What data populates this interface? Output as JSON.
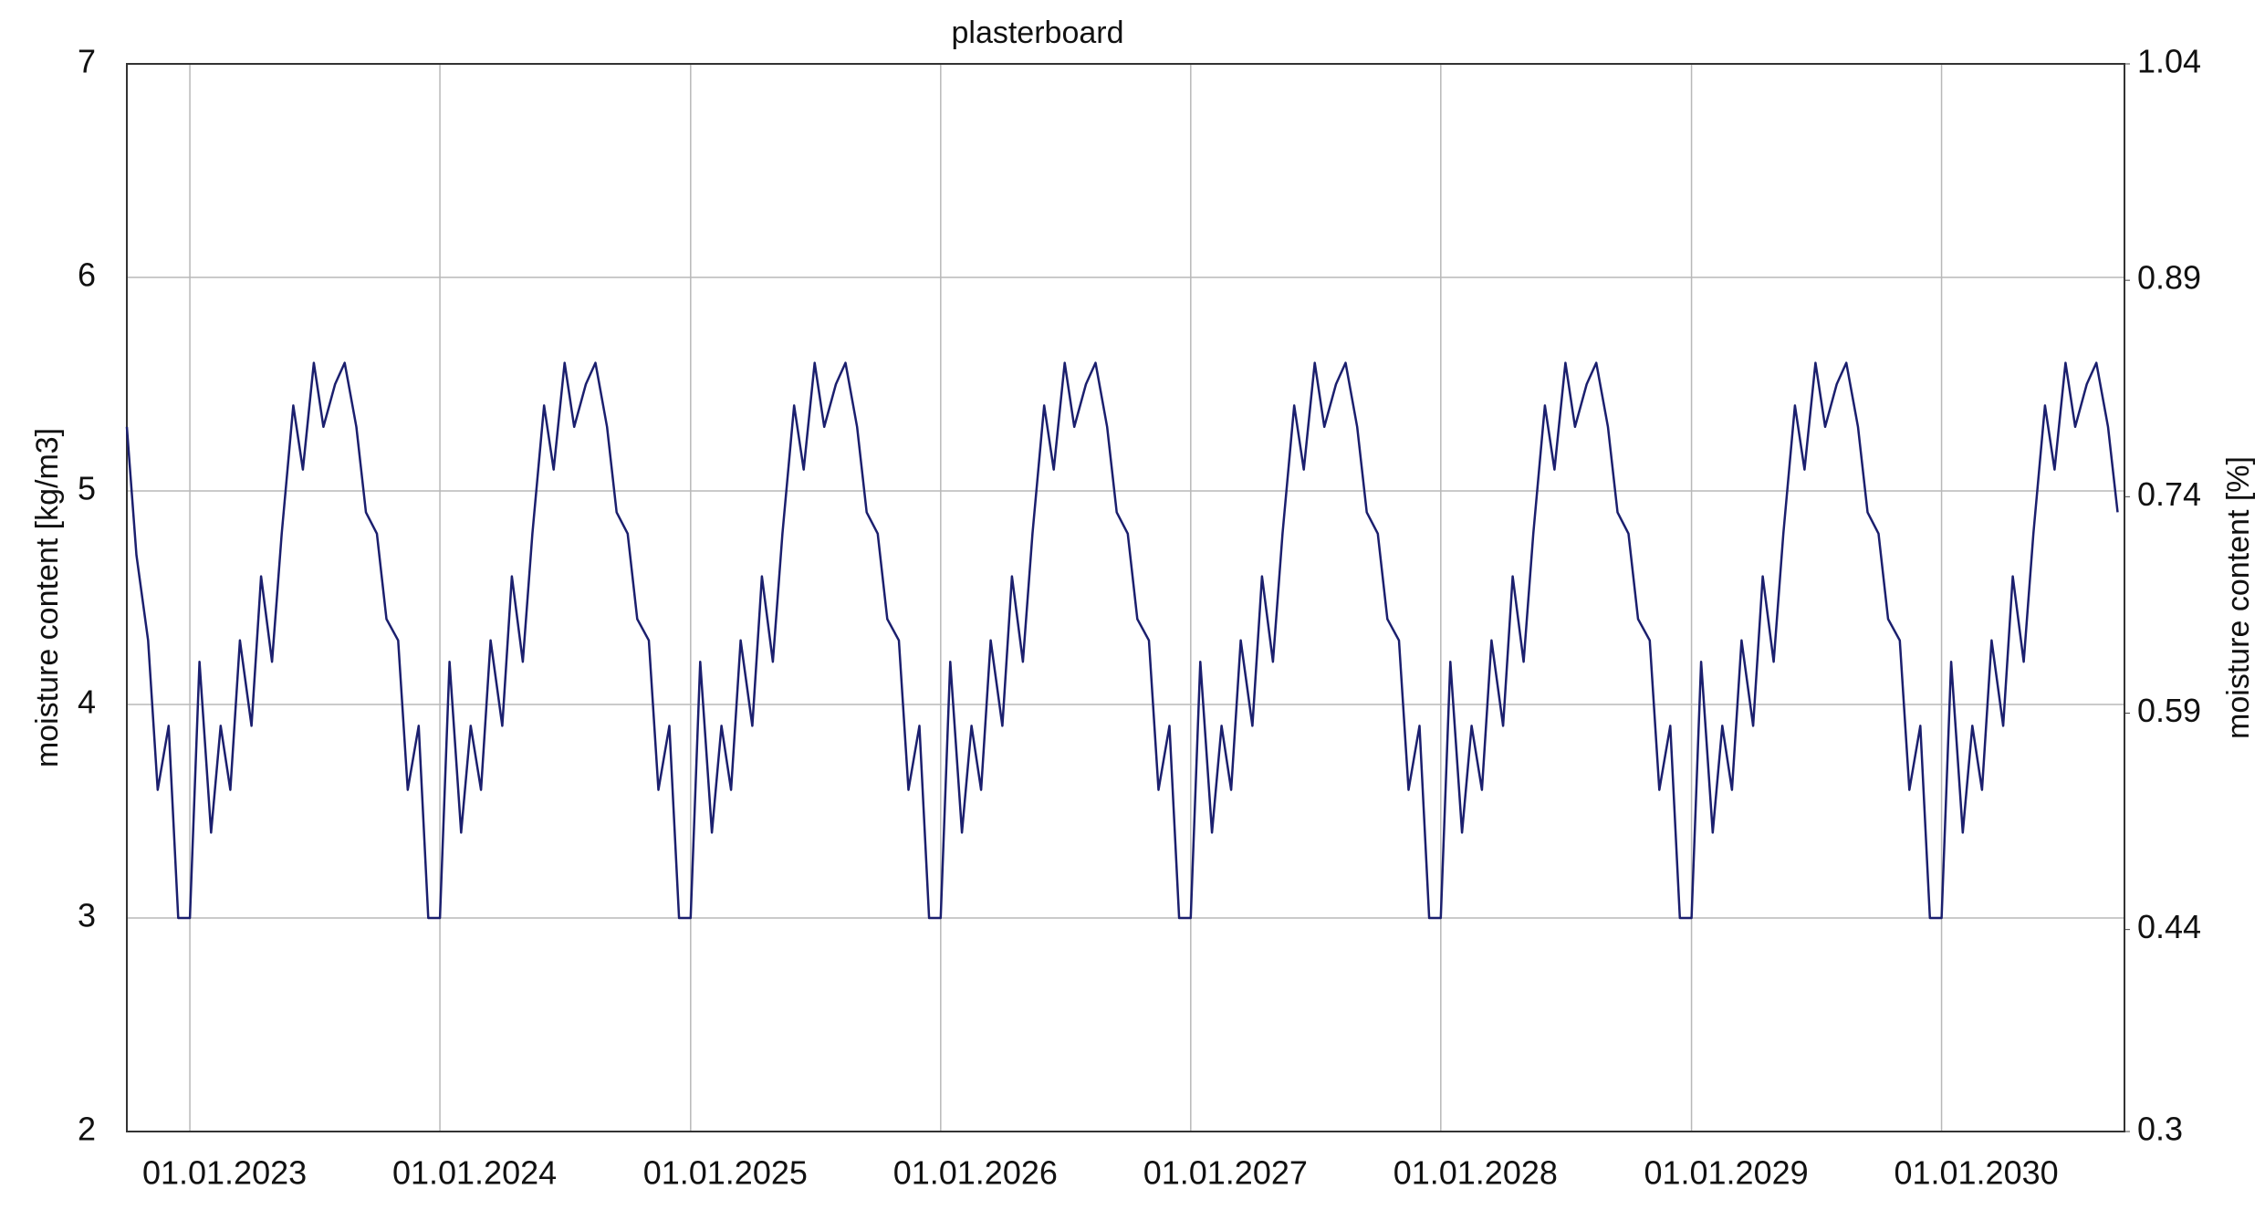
{
  "chart_data": {
    "type": "line",
    "title": "plasterboard",
    "y_label": "moisture content [kg/m3]",
    "y2_label": "moisture content [%]",
    "xlim": [
      "01.10.2022",
      "25.09.2030"
    ],
    "xticks": [
      "01.01.2023",
      "01.01.2024",
      "01.01.2025",
      "01.01.2026",
      "01.01.2027",
      "01.01.2028",
      "01.01.2029",
      "01.01.2030"
    ],
    "ylim": [
      2,
      7
    ],
    "yticks": [
      2,
      3,
      4,
      5,
      6,
      7
    ],
    "y2lim": [
      0.3,
      1.04
    ],
    "y2ticks": [
      0.3,
      0.44,
      0.59,
      0.74,
      0.89,
      1.04
    ],
    "grid": true,
    "x": [
      "01.10.2022",
      "15.10.2022",
      "01.11.2022",
      "15.11.2022",
      "01.12.2022",
      "15.12.2022",
      "01.01.2023",
      "15.01.2023",
      "01.02.2023",
      "15.02.2023",
      "01.03.2023",
      "15.03.2023",
      "01.04.2023",
      "15.04.2023",
      "01.05.2023",
      "15.05.2023",
      "01.06.2023",
      "15.06.2023",
      "01.07.2023",
      "15.07.2023",
      "01.08.2023",
      "15.08.2023",
      "01.09.2023",
      "15.09.2023",
      "01.10.2023",
      "15.10.2023",
      "01.11.2023",
      "15.11.2023",
      "01.12.2023",
      "15.12.2023",
      "01.01.2024",
      "15.01.2024",
      "01.02.2024",
      "15.02.2024",
      "01.03.2024",
      "15.03.2024",
      "01.04.2024",
      "15.04.2024",
      "01.05.2024",
      "15.05.2024",
      "01.06.2024",
      "15.06.2024",
      "01.07.2024",
      "15.07.2024",
      "01.08.2024",
      "15.08.2024",
      "01.09.2024",
      "15.09.2024",
      "01.10.2024",
      "15.10.2024",
      "01.11.2024",
      "15.11.2024",
      "01.12.2024",
      "15.12.2024",
      "01.01.2025",
      "15.01.2025",
      "01.02.2025",
      "15.02.2025",
      "01.03.2025",
      "15.03.2025",
      "01.04.2025",
      "15.04.2025",
      "01.05.2025",
      "15.05.2025",
      "01.06.2025",
      "15.06.2025",
      "01.07.2025",
      "15.07.2025",
      "01.08.2025",
      "15.08.2025",
      "01.09.2025",
      "15.09.2025",
      "01.10.2025",
      "15.10.2025",
      "01.11.2025",
      "15.11.2025",
      "01.12.2025",
      "15.12.2025",
      "01.01.2026",
      "15.01.2026",
      "01.02.2026",
      "15.02.2026",
      "01.03.2026",
      "15.03.2026",
      "01.04.2026",
      "15.04.2026",
      "01.05.2026",
      "15.05.2026",
      "01.06.2026",
      "15.06.2026",
      "01.07.2026",
      "15.07.2026",
      "01.08.2026",
      "15.08.2026",
      "01.09.2026",
      "15.09.2026",
      "01.10.2026",
      "15.10.2026",
      "01.11.2026",
      "15.11.2026",
      "01.12.2026",
      "15.12.2026",
      "01.01.2027",
      "15.01.2027",
      "01.02.2027",
      "15.02.2027",
      "01.03.2027",
      "15.03.2027",
      "01.04.2027",
      "15.04.2027",
      "01.05.2027",
      "15.05.2027",
      "01.06.2027",
      "15.06.2027",
      "01.07.2027",
      "15.07.2027",
      "01.08.2027",
      "15.08.2027",
      "01.09.2027",
      "15.09.2027",
      "01.10.2027",
      "15.10.2027",
      "01.11.2027",
      "15.11.2027",
      "01.12.2027",
      "15.12.2027",
      "01.01.2028",
      "15.01.2028",
      "01.02.2028",
      "15.02.2028",
      "01.03.2028",
      "15.03.2028",
      "01.04.2028",
      "15.04.2028",
      "01.05.2028",
      "15.05.2028",
      "01.06.2028",
      "15.06.2028",
      "01.07.2028",
      "15.07.2028",
      "01.08.2028",
      "15.08.2028",
      "01.09.2028",
      "15.09.2028",
      "01.10.2028",
      "15.10.2028",
      "01.11.2028",
      "15.11.2028",
      "01.12.2028",
      "15.12.2028",
      "01.01.2029",
      "15.01.2029",
      "01.02.2029",
      "15.02.2029",
      "01.03.2029",
      "15.03.2029",
      "01.04.2029",
      "15.04.2029",
      "01.05.2029",
      "15.05.2029",
      "01.06.2029",
      "15.06.2029",
      "01.07.2029",
      "15.07.2029",
      "01.08.2029",
      "15.08.2029",
      "01.09.2029",
      "15.09.2029",
      "01.10.2029",
      "15.10.2029",
      "01.11.2029",
      "15.11.2029",
      "01.12.2029",
      "15.12.2029",
      "01.01.2030",
      "15.01.2030",
      "01.02.2030",
      "15.02.2030",
      "01.03.2030",
      "15.03.2030",
      "01.04.2030",
      "15.04.2030",
      "01.05.2030",
      "15.05.2030",
      "01.06.2030",
      "15.06.2030",
      "01.07.2030",
      "15.07.2030",
      "01.08.2030",
      "15.08.2030",
      "01.09.2030",
      "15.09.2030"
    ],
    "series": [
      {
        "name": "plasterboard",
        "color": "#1b1f6e",
        "values": [
          5.3,
          4.7,
          4.3,
          3.6,
          3.9,
          3.0,
          3.0,
          4.2,
          3.4,
          3.9,
          3.6,
          4.3,
          3.9,
          4.6,
          4.2,
          4.8,
          5.4,
          5.1,
          5.6,
          5.3,
          5.5,
          5.6,
          5.3,
          4.9,
          4.8,
          4.4,
          4.3,
          3.6,
          3.9,
          3.0,
          3.0,
          4.2,
          3.4,
          3.9,
          3.6,
          4.3,
          3.9,
          4.6,
          4.2,
          4.8,
          5.4,
          5.1,
          5.6,
          5.3,
          5.5,
          5.6,
          5.3,
          4.9,
          4.8,
          4.4,
          4.3,
          3.6,
          3.9,
          3.0,
          3.0,
          4.2,
          3.4,
          3.9,
          3.6,
          4.3,
          3.9,
          4.6,
          4.2,
          4.8,
          5.4,
          5.1,
          5.6,
          5.3,
          5.5,
          5.6,
          5.3,
          4.9,
          4.8,
          4.4,
          4.3,
          3.6,
          3.9,
          3.0,
          3.0,
          4.2,
          3.4,
          3.9,
          3.6,
          4.3,
          3.9,
          4.6,
          4.2,
          4.8,
          5.4,
          5.1,
          5.6,
          5.3,
          5.5,
          5.6,
          5.3,
          4.9,
          4.8,
          4.4,
          4.3,
          3.6,
          3.9,
          3.0,
          3.0,
          4.2,
          3.4,
          3.9,
          3.6,
          4.3,
          3.9,
          4.6,
          4.2,
          4.8,
          5.4,
          5.1,
          5.6,
          5.3,
          5.5,
          5.6,
          5.3,
          4.9,
          4.8,
          4.4,
          4.3,
          3.6,
          3.9,
          3.0,
          3.0,
          4.2,
          3.4,
          3.9,
          3.6,
          4.3,
          3.9,
          4.6,
          4.2,
          4.8,
          5.4,
          5.1,
          5.6,
          5.3,
          5.5,
          5.6,
          5.3,
          4.9,
          4.8,
          4.4,
          4.3,
          3.6,
          3.9,
          3.0,
          3.0,
          4.2,
          3.4,
          3.9,
          3.6,
          4.3,
          3.9,
          4.6,
          4.2,
          4.8,
          5.4,
          5.1,
          5.6,
          5.3,
          5.5,
          5.6,
          5.3,
          4.9,
          4.8,
          4.4,
          4.3,
          3.6,
          3.9,
          3.0,
          3.0,
          4.2,
          3.4,
          3.9,
          3.6,
          4.3,
          3.9,
          4.6,
          4.2,
          4.8,
          5.4,
          5.1,
          5.6,
          5.3,
          5.5,
          5.6,
          5.3,
          4.9
        ]
      }
    ]
  }
}
